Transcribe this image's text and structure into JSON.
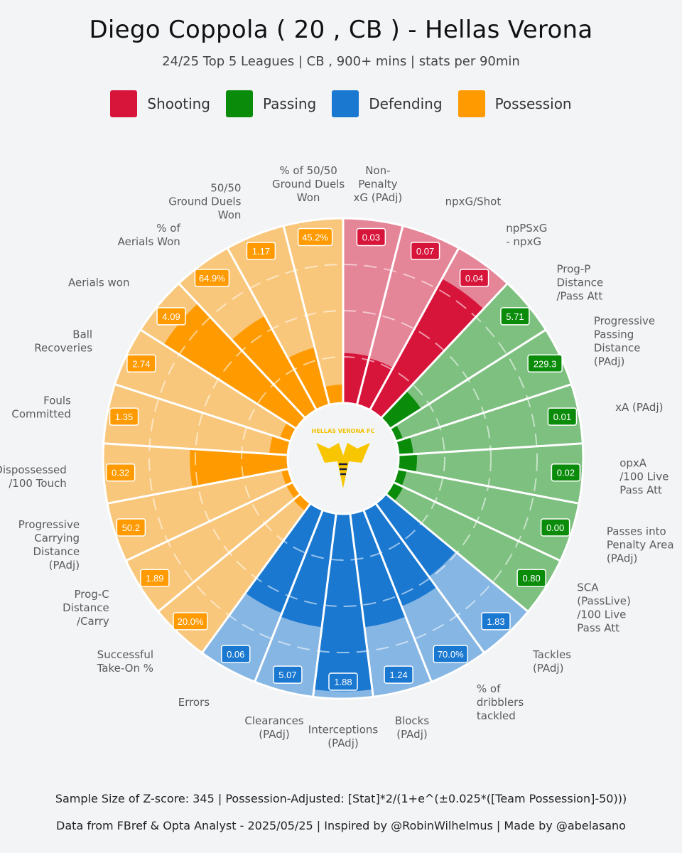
{
  "title": "Diego Coppola  ( 20 , CB ) - Hellas Verona",
  "subtitle": "24/25 Top 5 Leagues | CB , 900+ mins | stats per 90min",
  "legend": [
    {
      "label": "Shooting",
      "color": "#d7153a"
    },
    {
      "label": "Passing",
      "color": "#0a8c0a"
    },
    {
      "label": "Defending",
      "color": "#1a78d0"
    },
    {
      "label": "Possession",
      "color": "#ff9a00"
    }
  ],
  "club_badge_text": "HELLAS VERONA FC",
  "footer": {
    "line1": "Sample Size of Z-score:  345  |  Possession-Adjusted: [Stat]*2/(1+e^(±0.025*([Team Possession]-50)))",
    "line2": "Data from  FBref & Opta Analyst  - 2025/05/25  |  Inspired by @RobinWilhelmus  |  Made by @abelasano"
  },
  "chart_data": {
    "type": "radial-bar",
    "value_unit": "percentile",
    "range": [
      0,
      100
    ],
    "categories": [
      {
        "label": "Non-\nPenalty\nxG (PAdj)",
        "value": "0.03",
        "percentile": 27,
        "group": "Shooting"
      },
      {
        "label": "npxG/Shot",
        "value": "0.07",
        "percentile": 26,
        "group": "Shooting"
      },
      {
        "label": "npPSxG\n- npxG",
        "value": "0.04",
        "percentile": 81,
        "group": "Shooting"
      },
      {
        "label": "Prog-P\nDistance\n/Pass Att",
        "value": "5.71",
        "percentile": 20,
        "group": "Passing"
      },
      {
        "label": "Progressive\nPassing\nDistance\n(PAdj)",
        "value": "229.3",
        "percentile": 4,
        "group": "Passing"
      },
      {
        "label": "xA (PAdj)",
        "value": "0.01",
        "percentile": 8,
        "group": "Passing"
      },
      {
        "label": "opxA\n/100 Live\nPass Att",
        "value": "0.02",
        "percentile": 10,
        "group": "Passing"
      },
      {
        "label": "Passes into\nPenalty Area\n(PAdj)",
        "value": "0.00",
        "percentile": 5,
        "group": "Passing"
      },
      {
        "label": "SCA\n(PassLive)\n/100 Live\nPass Att",
        "value": "0.80",
        "percentile": 6,
        "group": "Passing"
      },
      {
        "label": "Tackles\n(PAdj)",
        "value": "1.83",
        "percentile": 49,
        "group": "Defending"
      },
      {
        "label": "% of\ndribblers\ntackled",
        "value": "70.0%",
        "percentile": 56,
        "group": "Defending"
      },
      {
        "label": "Blocks\n(PAdj)",
        "value": "1.24",
        "percentile": 62,
        "group": "Defending"
      },
      {
        "label": "Interceptions\n(PAdj)",
        "value": "1.88",
        "percentile": 96,
        "group": "Defending"
      },
      {
        "label": "Clearances\n(PAdj)",
        "value": "5.07",
        "percentile": 62,
        "group": "Defending"
      },
      {
        "label": "Errors",
        "value": "0.06",
        "percentile": 60,
        "group": "Defending"
      },
      {
        "label": "Successful\nTake-On %",
        "value": "20.0%",
        "percentile": 5,
        "group": "Possession"
      },
      {
        "label": "Prog-C\nDistance\n/Carry",
        "value": "1.89",
        "percentile": 4,
        "group": "Possession"
      },
      {
        "label": "Progressive\nCarrying\nDistance\n(PAdj)",
        "value": "50.2",
        "percentile": 4,
        "group": "Possession"
      },
      {
        "label": "Dispossessed\n/100 Touch",
        "value": "0.32",
        "percentile": 53,
        "group": "Possession"
      },
      {
        "label": "Fouls\nCommitted",
        "value": "1.35",
        "percentile": 10,
        "group": "Possession"
      },
      {
        "label": "Ball\nRecoveries",
        "value": "2.74",
        "percentile": 6,
        "group": "Possession"
      },
      {
        "label": "Aerials won",
        "value": "4.09",
        "percentile": 85,
        "group": "Possession"
      },
      {
        "label": "% of\nAerials Won",
        "value": "64.9%",
        "percentile": 58,
        "group": "Possession"
      },
      {
        "label": "50/50\nGround Duels\nWon",
        "value": "1.17",
        "percentile": 32,
        "group": "Possession"
      },
      {
        "label": "% of 50/50\nGround Duels\nWon",
        "value": "45.2%",
        "percentile": 10,
        "group": "Possession"
      }
    ]
  }
}
